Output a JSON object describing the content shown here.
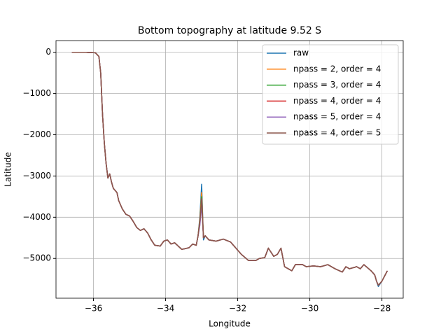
{
  "chart_data": {
    "type": "line",
    "title": "Bottom topography at latitude 9.52 S",
    "x_label": "Longitude",
    "y_label": "Latitude",
    "x": [
      -36.6,
      -36.2,
      -35.95,
      -35.85,
      -35.8,
      -35.75,
      -35.7,
      -35.65,
      -35.6,
      -35.55,
      -35.5,
      -35.45,
      -35.35,
      -35.3,
      -35.2,
      -35.1,
      -35.0,
      -34.9,
      -34.8,
      -34.7,
      -34.6,
      -34.5,
      -34.4,
      -34.3,
      -34.15,
      -34.05,
      -33.95,
      -33.85,
      -33.75,
      -33.65,
      -33.55,
      -33.45,
      -33.35,
      -33.25,
      -33.15,
      -33.1,
      -33.05,
      -33.0,
      -32.95,
      -32.9,
      -32.8,
      -32.6,
      -32.4,
      -32.2,
      -32.1,
      -31.9,
      -31.7,
      -31.5,
      -31.4,
      -31.25,
      -31.15,
      -31.0,
      -30.9,
      -30.8,
      -30.7,
      -30.6,
      -30.5,
      -30.4,
      -30.2,
      -30.1,
      -29.9,
      -29.7,
      -29.5,
      -29.3,
      -29.1,
      -29.0,
      -28.9,
      -28.7,
      -28.6,
      -28.5,
      -28.3,
      -28.2,
      -28.15,
      -28.1,
      -28.0,
      -27.85
    ],
    "series": [
      {
        "name": "raw",
        "color": "#1f77b4",
        "values": [
          0,
          0,
          -10,
          -100,
          -500,
          -1500,
          -2200,
          -2700,
          -3050,
          -2950,
          -3150,
          -3300,
          -3400,
          -3600,
          -3800,
          -3930,
          -3970,
          -4100,
          -4250,
          -4320,
          -4280,
          -4380,
          -4550,
          -4680,
          -4700,
          -4580,
          -4550,
          -4650,
          -4620,
          -4700,
          -4780,
          -4760,
          -4740,
          -4650,
          -4680,
          -4450,
          -4000,
          -3200,
          -4550,
          -4450,
          -4550,
          -4580,
          -4530,
          -4600,
          -4700,
          -4900,
          -5050,
          -5050,
          -5000,
          -4980,
          -4750,
          -4950,
          -4900,
          -4750,
          -5200,
          -5250,
          -5300,
          -5150,
          -5150,
          -5200,
          -5180,
          -5200,
          -5150,
          -5250,
          -5330,
          -5200,
          -5250,
          -5200,
          -5250,
          -5150,
          -5300,
          -5400,
          -5550,
          -5680,
          -5550,
          -5300
        ]
      },
      {
        "name": "npass = 2, order = 4",
        "color": "#ff7f0e",
        "values": [
          0,
          0,
          -10,
          -100,
          -500,
          -1500,
          -2200,
          -2700,
          -3050,
          -2950,
          -3150,
          -3300,
          -3400,
          -3600,
          -3800,
          -3930,
          -3970,
          -4100,
          -4250,
          -4320,
          -4280,
          -4380,
          -4550,
          -4680,
          -4700,
          -4580,
          -4550,
          -4650,
          -4620,
          -4700,
          -4780,
          -4760,
          -4740,
          -4650,
          -4680,
          -4450,
          -4050,
          -3400,
          -4500,
          -4450,
          -4550,
          -4580,
          -4530,
          -4600,
          -4700,
          -4900,
          -5050,
          -5050,
          -5000,
          -4980,
          -4750,
          -4950,
          -4900,
          -4750,
          -5200,
          -5250,
          -5300,
          -5150,
          -5150,
          -5200,
          -5180,
          -5200,
          -5150,
          -5250,
          -5330,
          -5200,
          -5250,
          -5200,
          -5250,
          -5150,
          -5300,
          -5400,
          -5550,
          -5650,
          -5550,
          -5300
        ]
      },
      {
        "name": "npass = 3, order = 4",
        "color": "#2ca02c",
        "values": [
          0,
          0,
          -10,
          -100,
          -500,
          -1500,
          -2200,
          -2700,
          -3050,
          -2950,
          -3150,
          -3300,
          -3400,
          -3600,
          -3800,
          -3930,
          -3970,
          -4100,
          -4250,
          -4320,
          -4280,
          -4380,
          -4550,
          -4680,
          -4700,
          -4580,
          -4550,
          -4650,
          -4620,
          -4700,
          -4780,
          -4760,
          -4740,
          -4650,
          -4680,
          -4450,
          -4100,
          -3500,
          -4500,
          -4450,
          -4550,
          -4580,
          -4530,
          -4600,
          -4700,
          -4900,
          -5050,
          -5050,
          -5000,
          -4980,
          -4750,
          -4950,
          -4900,
          -4750,
          -5200,
          -5250,
          -5300,
          -5150,
          -5150,
          -5200,
          -5180,
          -5200,
          -5150,
          -5250,
          -5330,
          -5200,
          -5250,
          -5200,
          -5250,
          -5150,
          -5300,
          -5400,
          -5550,
          -5650,
          -5550,
          -5300
        ]
      },
      {
        "name": "npass = 4, order = 4",
        "color": "#d62728",
        "values": [
          0,
          0,
          -10,
          -100,
          -500,
          -1500,
          -2200,
          -2700,
          -3050,
          -2950,
          -3150,
          -3300,
          -3400,
          -3600,
          -3800,
          -3930,
          -3970,
          -4100,
          -4250,
          -4320,
          -4280,
          -4380,
          -4550,
          -4680,
          -4700,
          -4580,
          -4550,
          -4650,
          -4620,
          -4700,
          -4780,
          -4760,
          -4740,
          -4650,
          -4680,
          -4450,
          -4150,
          -3600,
          -4500,
          -4450,
          -4550,
          -4580,
          -4530,
          -4600,
          -4700,
          -4900,
          -5050,
          -5050,
          -5000,
          -4980,
          -4750,
          -4950,
          -4900,
          -4750,
          -5200,
          -5250,
          -5300,
          -5150,
          -5150,
          -5200,
          -5180,
          -5200,
          -5150,
          -5250,
          -5330,
          -5200,
          -5250,
          -5200,
          -5250,
          -5150,
          -5300,
          -5400,
          -5550,
          -5650,
          -5550,
          -5300
        ]
      },
      {
        "name": "npass = 5, order = 4",
        "color": "#9467bd",
        "values": [
          0,
          0,
          -10,
          -100,
          -500,
          -1500,
          -2200,
          -2700,
          -3050,
          -2950,
          -3150,
          -3300,
          -3400,
          -3600,
          -3800,
          -3930,
          -3970,
          -4100,
          -4250,
          -4320,
          -4280,
          -4380,
          -4550,
          -4680,
          -4700,
          -4580,
          -4550,
          -4650,
          -4620,
          -4700,
          -4780,
          -4760,
          -4740,
          -4650,
          -4680,
          -4450,
          -4200,
          -3700,
          -4500,
          -4450,
          -4550,
          -4580,
          -4530,
          -4600,
          -4700,
          -4900,
          -5050,
          -5050,
          -5000,
          -4980,
          -4750,
          -4950,
          -4900,
          -4750,
          -5200,
          -5250,
          -5300,
          -5150,
          -5150,
          -5200,
          -5180,
          -5200,
          -5150,
          -5250,
          -5330,
          -5200,
          -5250,
          -5200,
          -5250,
          -5150,
          -5300,
          -5400,
          -5550,
          -5650,
          -5550,
          -5300
        ]
      },
      {
        "name": "npass = 4, order = 5",
        "color": "#8c564b",
        "values": [
          0,
          0,
          -10,
          -100,
          -500,
          -1500,
          -2200,
          -2700,
          -3050,
          -2950,
          -3150,
          -3300,
          -3400,
          -3600,
          -3800,
          -3930,
          -3970,
          -4100,
          -4250,
          -4320,
          -4280,
          -4380,
          -4550,
          -4680,
          -4700,
          -4580,
          -4550,
          -4650,
          -4620,
          -4700,
          -4780,
          -4760,
          -4740,
          -4650,
          -4680,
          -4450,
          -4100,
          -3550,
          -4500,
          -4450,
          -4550,
          -4580,
          -4530,
          -4600,
          -4700,
          -4900,
          -5050,
          -5050,
          -5000,
          -4980,
          -4750,
          -4950,
          -4900,
          -4750,
          -5200,
          -5250,
          -5300,
          -5150,
          -5150,
          -5200,
          -5180,
          -5200,
          -5150,
          -5250,
          -5330,
          -5200,
          -5250,
          -5200,
          -5250,
          -5150,
          -5300,
          -5400,
          -5550,
          -5650,
          -5550,
          -5300
        ]
      }
    ],
    "xlim": [
      -37.04,
      -27.41
    ],
    "xticks": [
      {
        "value": -36,
        "label": "−36"
      },
      {
        "value": -34,
        "label": "−34"
      },
      {
        "value": -32,
        "label": "−32"
      },
      {
        "value": -30,
        "label": "−30"
      },
      {
        "value": -28,
        "label": "−28"
      }
    ],
    "ylim": [
      -5964,
      284
    ],
    "yticks": [
      0,
      {
        "value": -1000,
        "label": "−1000"
      },
      {
        "value": -2000,
        "label": "−2000"
      },
      {
        "value": -3000,
        "label": "−3000"
      },
      {
        "value": -4000,
        "label": "−4000"
      },
      {
        "value": -5000,
        "label": "−5000"
      }
    ],
    "grid": true,
    "legend": "upper right"
  }
}
